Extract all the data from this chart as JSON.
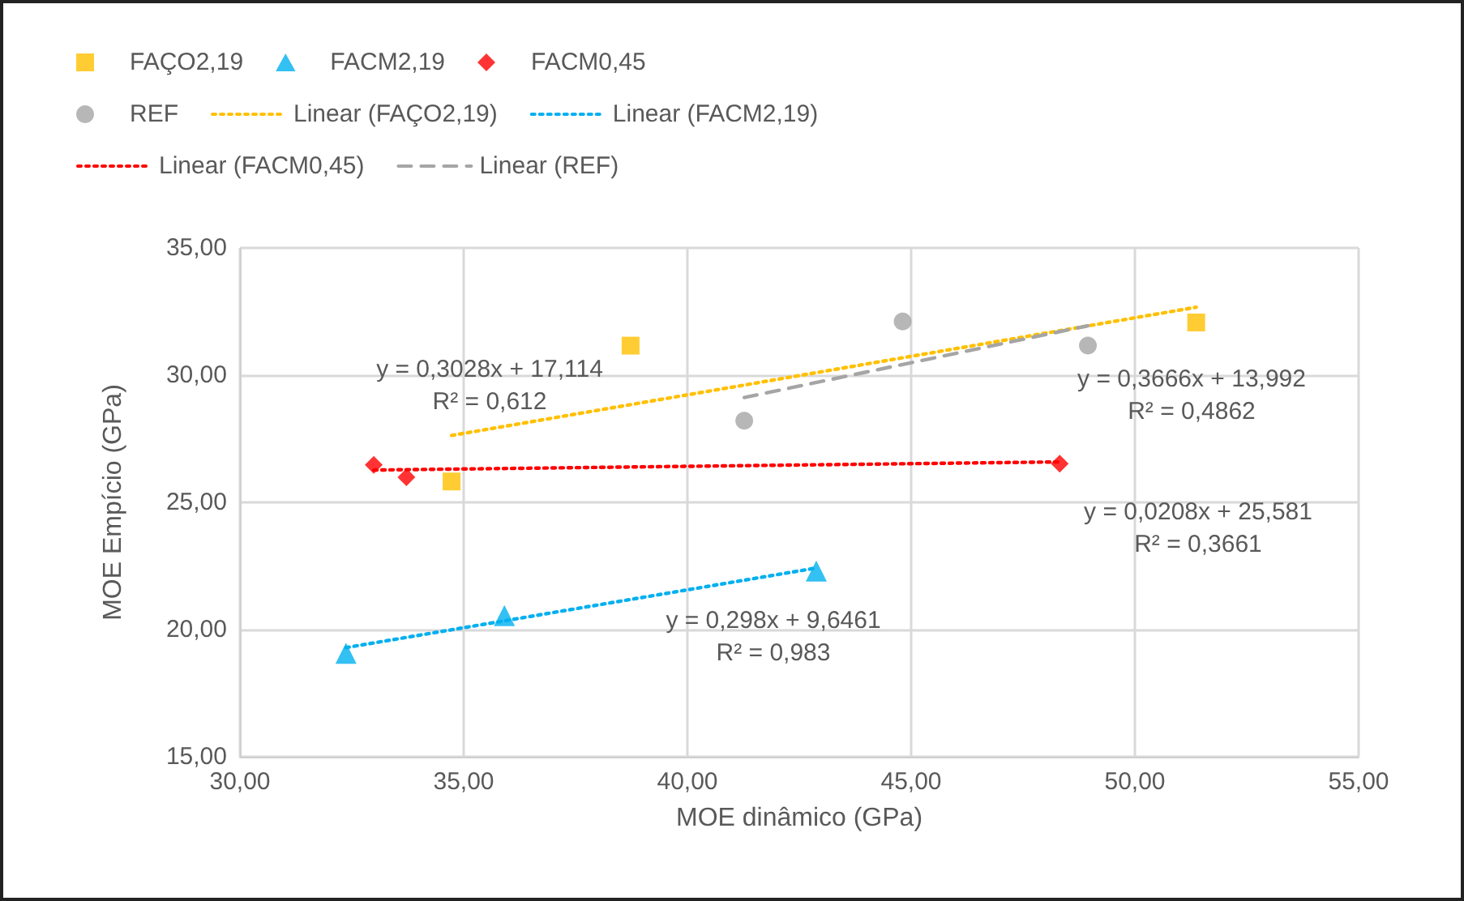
{
  "chart_data": {
    "type": "scatter",
    "xlabel": "MOE dinâmico (GPa)",
    "ylabel": "MOE Empício (GPa)",
    "xlim": [
      30,
      55
    ],
    "xticks": [
      {
        "value": 30,
        "label": "30,00"
      },
      {
        "value": 35,
        "label": "35,00"
      },
      {
        "value": 40,
        "label": "40,00"
      },
      {
        "value": 45,
        "label": "45,00"
      },
      {
        "value": 50,
        "label": "50,00"
      },
      {
        "value": 55,
        "label": "55,00"
      }
    ],
    "ylim": [
      15,
      35
    ],
    "yticks": [
      {
        "value": 15,
        "label": "15,00"
      },
      {
        "value": 20,
        "label": "20,00"
      },
      {
        "value": 25,
        "label": "25,00"
      },
      {
        "value": 30,
        "label": "30,00"
      },
      {
        "value": 35,
        "label": "35,00"
      }
    ],
    "grid": true,
    "legend": "top",
    "series": [
      {
        "name": "FAÇO2,19",
        "marker": "square",
        "color": "#ffc000",
        "x": [
          34.73,
          38.73,
          51.37
        ],
        "values": [
          25.82,
          31.16,
          32.07
        ]
      },
      {
        "name": "FACM2,19",
        "marker": "triangle",
        "color": "#00b0f0",
        "x": [
          32.37,
          35.91,
          42.88
        ],
        "values": [
          19.07,
          20.55,
          22.3
        ]
      },
      {
        "name": "FACM0,45",
        "marker": "diamond",
        "color": "#ff0000",
        "x": [
          32.99,
          33.72,
          48.32
        ],
        "values": [
          26.47,
          25.99,
          26.52
        ]
      },
      {
        "name": "REF",
        "marker": "circle",
        "color": "#a5a5a5",
        "x": [
          41.27,
          44.81,
          48.95
        ],
        "values": [
          28.21,
          32.11,
          31.16
        ]
      },
      {
        "name": "Linear (FAÇO2,19)",
        "type": "line",
        "marker": "none",
        "line_style": "dotted",
        "color": "#ffc000",
        "x": [
          34.73,
          51.37
        ],
        "values": [
          27.63,
          32.67
        ]
      },
      {
        "name": "Linear (FACM2,19)",
        "type": "line",
        "marker": "none",
        "line_style": "dotted",
        "color": "#00b0f0",
        "x": [
          32.37,
          42.88
        ],
        "values": [
          19.29,
          22.42
        ]
      },
      {
        "name": "Linear (FACM0,45)",
        "type": "line",
        "marker": "none",
        "line_style": "dotted",
        "color": "#ff0000",
        "x": [
          32.99,
          48.32
        ],
        "values": [
          26.27,
          26.59
        ]
      },
      {
        "name": "Linear (REF)",
        "type": "line",
        "marker": "none",
        "line_style": "dashed",
        "color": "#a5a5a5",
        "x": [
          41.27,
          48.95
        ],
        "values": [
          29.12,
          31.94
        ]
      }
    ],
    "annotations": [
      "y = 0,3028x + 17,114\nR² = 0,612",
      "y = 0,3666x + 13,992\nR² = 0,4862",
      "y = 0,0208x + 25,581\nR² = 0,3661",
      "y = 0,298x + 9,6461\nR² = 0,983"
    ]
  }
}
